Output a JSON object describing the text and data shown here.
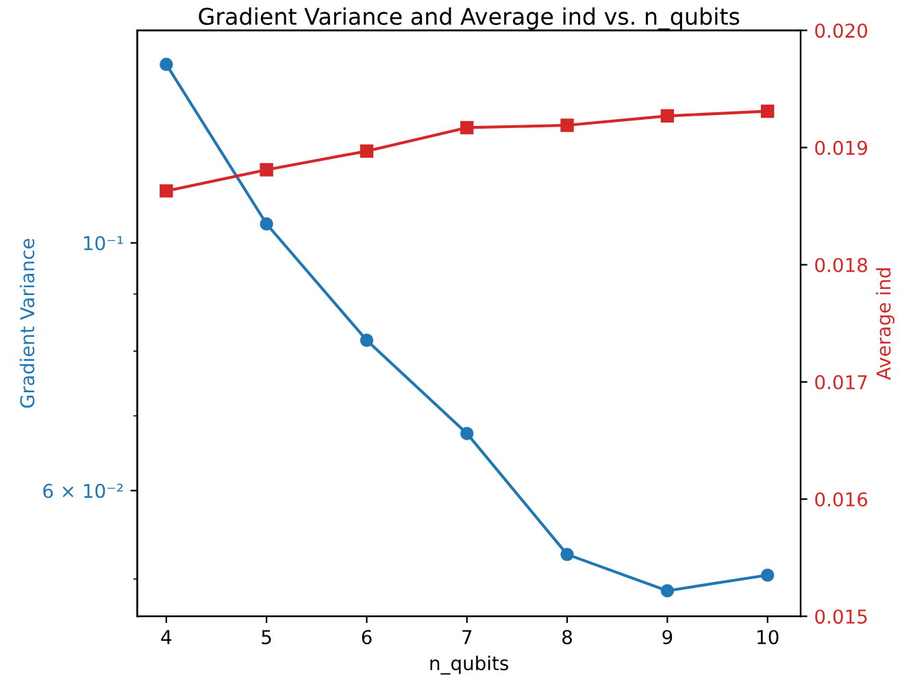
{
  "chart_data": {
    "type": "line",
    "title": "Gradient Variance and Average ind vs. n_qubits",
    "xlabel": "n_qubits",
    "ylabel": "Gradient Variance",
    "y2label": "Average ind",
    "x": [
      4,
      5,
      6,
      7,
      8,
      9,
      10
    ],
    "series": [
      {
        "color": "#1f77b4",
        "marker": "circle",
        "values": [
          0.1445,
          0.104,
          0.0818,
          0.0675,
          0.0526,
          0.0488,
          0.0504
        ]
      },
      {
        "color": "#d62728",
        "marker": "square",
        "axis": "y2",
        "values": [
          0.01863,
          0.01881,
          0.01897,
          0.01917,
          0.01919,
          0.01927,
          0.01931
        ]
      }
    ],
    "log": "y",
    "xlim": [
      3.71,
      10.33
    ],
    "xticks": [
      4,
      5,
      6,
      7,
      8,
      9,
      10
    ],
    "ylim": [
      0.0463,
      0.155
    ],
    "yticks": [
      {
        "value": 0.1,
        "label": "10⁻¹"
      },
      {
        "value": 0.06,
        "label": "6 × 10⁻²"
      },
      {
        "value": 0.05,
        "label": null
      },
      {
        "value": 0.07,
        "label": null
      },
      {
        "value": 0.08,
        "label": null
      },
      {
        "value": 0.09,
        "label": null
      }
    ],
    "y2lim": [
      0.015,
      0.02
    ],
    "y2ticks": [
      0.015,
      0.016,
      0.017,
      0.018,
      0.019,
      "0.020"
    ],
    "grid": false
  }
}
